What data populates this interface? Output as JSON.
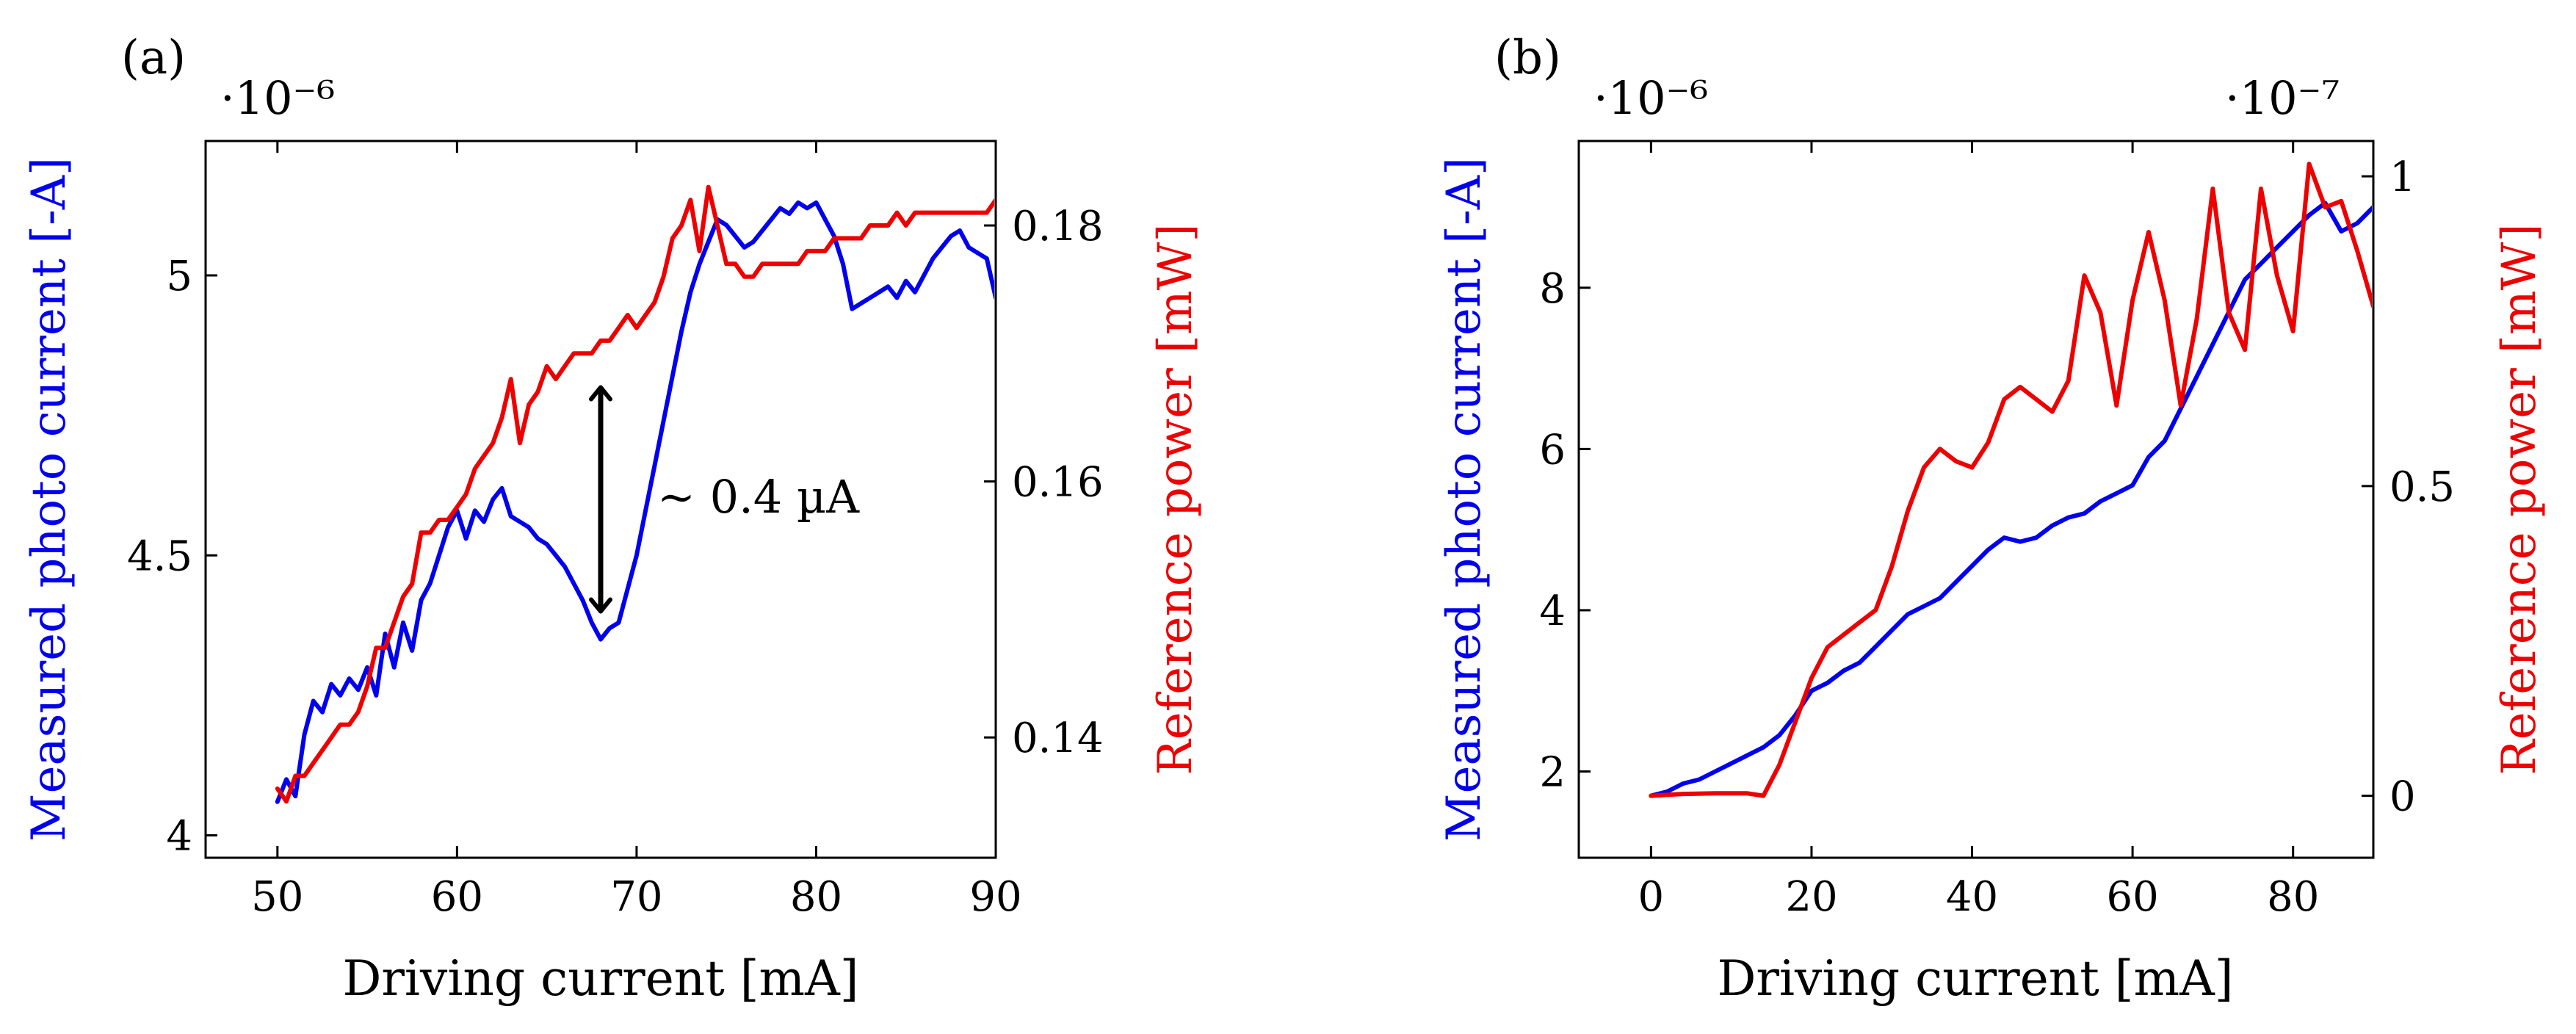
{
  "chart_data": [
    {
      "type": "line",
      "panel_label": "(a)",
      "xlabel": "Driving current [mA]",
      "ylabel": "Measured photo current [-A]",
      "y2label": "Reference power [mW]",
      "left_scale_label": "·10⁻⁶",
      "xlim": [
        46,
        90
      ],
      "ylim": [
        3.96,
        5.24
      ],
      "y2lim": [
        0.1306,
        0.1866
      ],
      "xticks": [
        50,
        60,
        70,
        80,
        90
      ],
      "yticks": [
        4,
        4.5,
        5
      ],
      "ytick_labels": [
        "4",
        "4.5",
        "5"
      ],
      "y2ticks": [
        0.14,
        0.16,
        0.18
      ],
      "y2tick_labels": [
        "0.14",
        "0.16",
        "0.18"
      ],
      "annotation": {
        "text": "∼ 0.4 µA",
        "x": 68,
        "y_from": 4.4,
        "y_to": 4.8
      },
      "series": [
        {
          "name": "Measured photo current",
          "axis": "left",
          "color": "#0000ee",
          "x": [
            50,
            50.5,
            51,
            51.5,
            52,
            52.5,
            53,
            53.5,
            54,
            54.5,
            55,
            55.5,
            56,
            56.5,
            57,
            57.5,
            58,
            58.5,
            59,
            59.5,
            60,
            60.5,
            61,
            61.5,
            62,
            62.5,
            63,
            63.5,
            64,
            64.5,
            65,
            65.5,
            66,
            66.5,
            67,
            67.5,
            68,
            68.5,
            69,
            69.5,
            70,
            70.5,
            71,
            71.5,
            72,
            72.5,
            73,
            73.5,
            74,
            74.5,
            75,
            75.5,
            76,
            76.5,
            77,
            77.5,
            78,
            78.5,
            79,
            79.5,
            80,
            80.5,
            81,
            81.5,
            82,
            82.5,
            83,
            83.5,
            84,
            84.5,
            85,
            85.5,
            86,
            86.5,
            87,
            87.5,
            88,
            88.5,
            89,
            89.5,
            90
          ],
          "values": [
            4.06,
            4.1,
            4.07,
            4.18,
            4.24,
            4.22,
            4.27,
            4.25,
            4.28,
            4.26,
            4.3,
            4.25,
            4.36,
            4.3,
            4.38,
            4.33,
            4.42,
            4.45,
            4.5,
            4.55,
            4.58,
            4.53,
            4.58,
            4.56,
            4.6,
            4.62,
            4.57,
            4.56,
            4.55,
            4.53,
            4.52,
            4.5,
            4.48,
            4.45,
            4.42,
            4.38,
            4.35,
            4.37,
            4.38,
            4.44,
            4.5,
            4.58,
            4.66,
            4.74,
            4.82,
            4.9,
            4.97,
            5.02,
            5.06,
            5.1,
            5.09,
            5.07,
            5.05,
            5.06,
            5.08,
            5.1,
            5.12,
            5.11,
            5.13,
            5.12,
            5.13,
            5.1,
            5.07,
            5.02,
            4.94,
            4.95,
            4.96,
            4.97,
            4.98,
            4.96,
            4.99,
            4.97,
            5.0,
            5.03,
            5.05,
            5.07,
            5.08,
            5.05,
            5.04,
            5.03,
            4.96
          ]
        },
        {
          "name": "Reference power",
          "axis": "right",
          "color": "#ee0000",
          "x": [
            50,
            50.5,
            51,
            51.5,
            52,
            52.5,
            53,
            53.5,
            54,
            54.5,
            55,
            55.5,
            56,
            56.5,
            57,
            57.5,
            58,
            58.5,
            59,
            59.5,
            60,
            60.5,
            61,
            61.5,
            62,
            62.5,
            63,
            63.5,
            64,
            64.5,
            65,
            65.5,
            66,
            66.5,
            67,
            67.5,
            68,
            68.5,
            69,
            69.5,
            70,
            70.5,
            71,
            71.5,
            72,
            72.5,
            73,
            73.5,
            74,
            74.5,
            75,
            75.5,
            76,
            76.5,
            77,
            77.5,
            78,
            78.5,
            79,
            79.5,
            80,
            80.5,
            81,
            81.5,
            82,
            82.5,
            83,
            83.5,
            84,
            84.5,
            85,
            85.5,
            86,
            86.5,
            87,
            87.5,
            88,
            88.5,
            89,
            89.5,
            90
          ],
          "values": [
            0.136,
            0.135,
            0.137,
            0.137,
            0.138,
            0.139,
            0.14,
            0.141,
            0.141,
            0.142,
            0.144,
            0.147,
            0.147,
            0.149,
            0.151,
            0.152,
            0.156,
            0.156,
            0.157,
            0.157,
            0.158,
            0.159,
            0.161,
            0.162,
            0.163,
            0.165,
            0.168,
            0.163,
            0.166,
            0.167,
            0.169,
            0.168,
            0.169,
            0.17,
            0.17,
            0.17,
            0.171,
            0.171,
            0.172,
            0.173,
            0.172,
            0.173,
            0.174,
            0.176,
            0.179,
            0.18,
            0.182,
            0.178,
            0.183,
            0.18,
            0.177,
            0.177,
            0.176,
            0.176,
            0.177,
            0.177,
            0.177,
            0.177,
            0.177,
            0.178,
            0.178,
            0.178,
            0.179,
            0.179,
            0.179,
            0.179,
            0.18,
            0.18,
            0.18,
            0.181,
            0.18,
            0.181,
            0.181,
            0.181,
            0.181,
            0.181,
            0.181,
            0.181,
            0.181,
            0.181,
            0.182
          ]
        }
      ]
    },
    {
      "type": "line",
      "panel_label": "(b)",
      "xlabel": "Driving current [mA]",
      "ylabel": "Measured photo current [-A]",
      "y2label": "Reference power [mW]",
      "left_scale_label": "·10⁻⁶",
      "right_scale_label": "·10⁻⁷",
      "xlim": [
        -9,
        90
      ],
      "ylim": [
        0.93,
        9.82
      ],
      "y2lim": [
        -0.1,
        1.057
      ],
      "xticks": [
        0,
        20,
        40,
        60,
        80
      ],
      "yticks": [
        2,
        4,
        6,
        8
      ],
      "ytick_labels": [
        "2",
        "4",
        "6",
        "8"
      ],
      "y2ticks": [
        0,
        0.5,
        1
      ],
      "y2tick_labels": [
        "0",
        "0.5",
        "1"
      ],
      "series": [
        {
          "name": "Measured photo current",
          "axis": "left",
          "color": "#0000ee",
          "x": [
            0,
            2,
            4,
            6,
            8,
            10,
            12,
            14,
            16,
            18,
            20,
            22,
            24,
            26,
            28,
            30,
            32,
            34,
            36,
            38,
            40,
            42,
            44,
            46,
            48,
            50,
            52,
            54,
            56,
            58,
            60,
            62,
            64,
            66,
            68,
            70,
            72,
            74,
            76,
            78,
            80,
            82,
            84,
            86,
            88,
            90
          ],
          "values": [
            1.7,
            1.75,
            1.85,
            1.9,
            2.0,
            2.1,
            2.2,
            2.3,
            2.45,
            2.7,
            3.0,
            3.1,
            3.25,
            3.35,
            3.55,
            3.75,
            3.95,
            4.05,
            4.15,
            4.35,
            4.55,
            4.75,
            4.9,
            4.85,
            4.9,
            5.05,
            5.15,
            5.2,
            5.35,
            5.45,
            5.55,
            5.9,
            6.1,
            6.5,
            6.9,
            7.3,
            7.7,
            8.1,
            8.3,
            8.5,
            8.7,
            8.9,
            9.05,
            8.7,
            8.8,
            9.0
          ]
        },
        {
          "name": "Reference power",
          "axis": "right",
          "color": "#ee0000",
          "x": [
            0,
            4,
            8,
            12,
            14,
            16,
            18,
            20,
            22,
            24,
            26,
            28,
            30,
            32,
            34,
            36,
            38,
            40,
            42,
            44,
            46,
            48,
            50,
            52,
            54,
            56,
            58,
            60,
            62,
            64,
            66,
            68,
            70,
            72,
            74,
            76,
            78,
            80,
            82,
            84,
            86,
            88,
            90
          ],
          "values": [
            0.0,
            0.003,
            0.004,
            0.004,
            0.0,
            0.05,
            0.12,
            0.19,
            0.24,
            0.26,
            0.28,
            0.3,
            0.37,
            0.46,
            0.53,
            0.56,
            0.54,
            0.53,
            0.57,
            0.64,
            0.66,
            0.64,
            0.62,
            0.67,
            0.84,
            0.78,
            0.63,
            0.8,
            0.91,
            0.8,
            0.63,
            0.77,
            0.98,
            0.78,
            0.72,
            0.98,
            0.84,
            0.75,
            1.02,
            0.95,
            0.96,
            0.88,
            0.79
          ]
        }
      ]
    }
  ]
}
